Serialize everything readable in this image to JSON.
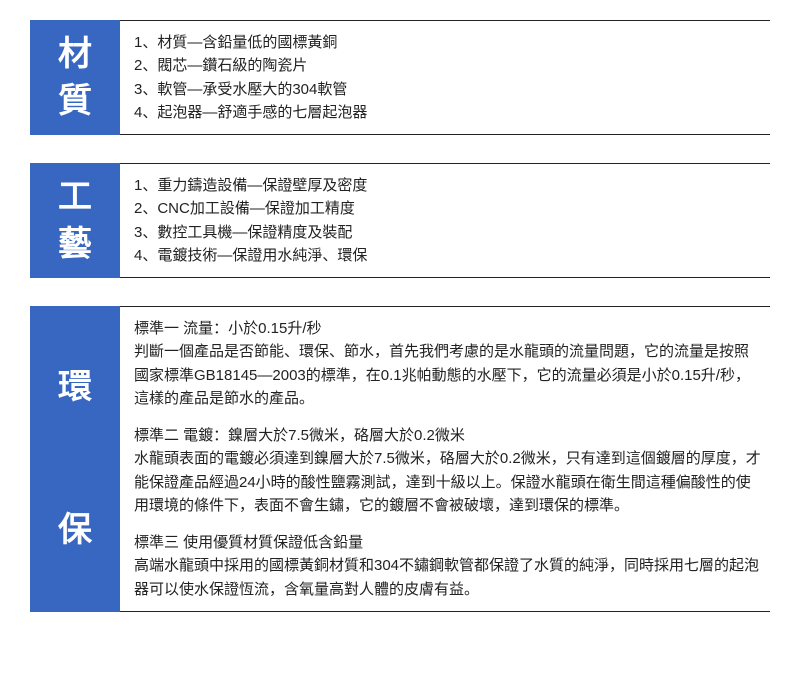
{
  "colors": {
    "label_bg": "#3867c2",
    "label_fg": "#ffffff",
    "border": "#222222",
    "text": "#222222",
    "background": "#ffffff"
  },
  "sections": {
    "material": {
      "label_char1": "材",
      "label_char2": "質",
      "lines": {
        "l1": "1、材質—含鉛量低的國標黃銅",
        "l2": "2、閥芯—鑽石級的陶瓷片",
        "l3": "3、軟管—承受水壓大的304軟管",
        "l4": "4、起泡器—舒適手感的七層起泡器"
      }
    },
    "craft": {
      "label_char1": "工",
      "label_char2": "藝",
      "lines": {
        "l1": "1、重力鑄造設備—保證壁厚及密度",
        "l2": "2、CNC加工設備—保證加工精度",
        "l3": "3、數控工具機—保證精度及裝配",
        "l4": "4、電鍍技術—保證用水純淨、環保"
      }
    },
    "env": {
      "label_char1": "環",
      "label_char2": "保",
      "std1": {
        "title": "標準一 流量：小於0.15升/秒",
        "body": "判斷一個產品是否節能、環保、節水，首先我們考慮的是水龍頭的流量問題，它的流量是按照國家標準GB18145—2003的標準，在0.1兆帕動態的水壓下，它的流量必須是小於0.15升/秒，這樣的產品是節水的產品。"
      },
      "std2": {
        "title": "標準二 電鍍：鎳層大於7.5微米，硌層大於0.2微米",
        "body": "水龍頭表面的電鍍必須達到鎳層大於7.5微米，硌層大於0.2微米，只有達到這個鍍層的厚度，才能保證產品經過24小時的酸性鹽霧測試，達到十級以上。保證水龍頭在衛生間這種偏酸性的使用環境的條件下，表面不會生鏽，它的鍍層不會被破壞，達到環保的標準。"
      },
      "std3": {
        "title": "標準三 使用優質材質保證低含鉛量",
        "body": "高端水龍頭中採用的國標黃銅材質和304不鏽鋼軟管都保證了水質的純淨，同時採用七層的起泡器可以使水保證恆流，含氧量高對人體的皮膚有益。"
      }
    }
  }
}
